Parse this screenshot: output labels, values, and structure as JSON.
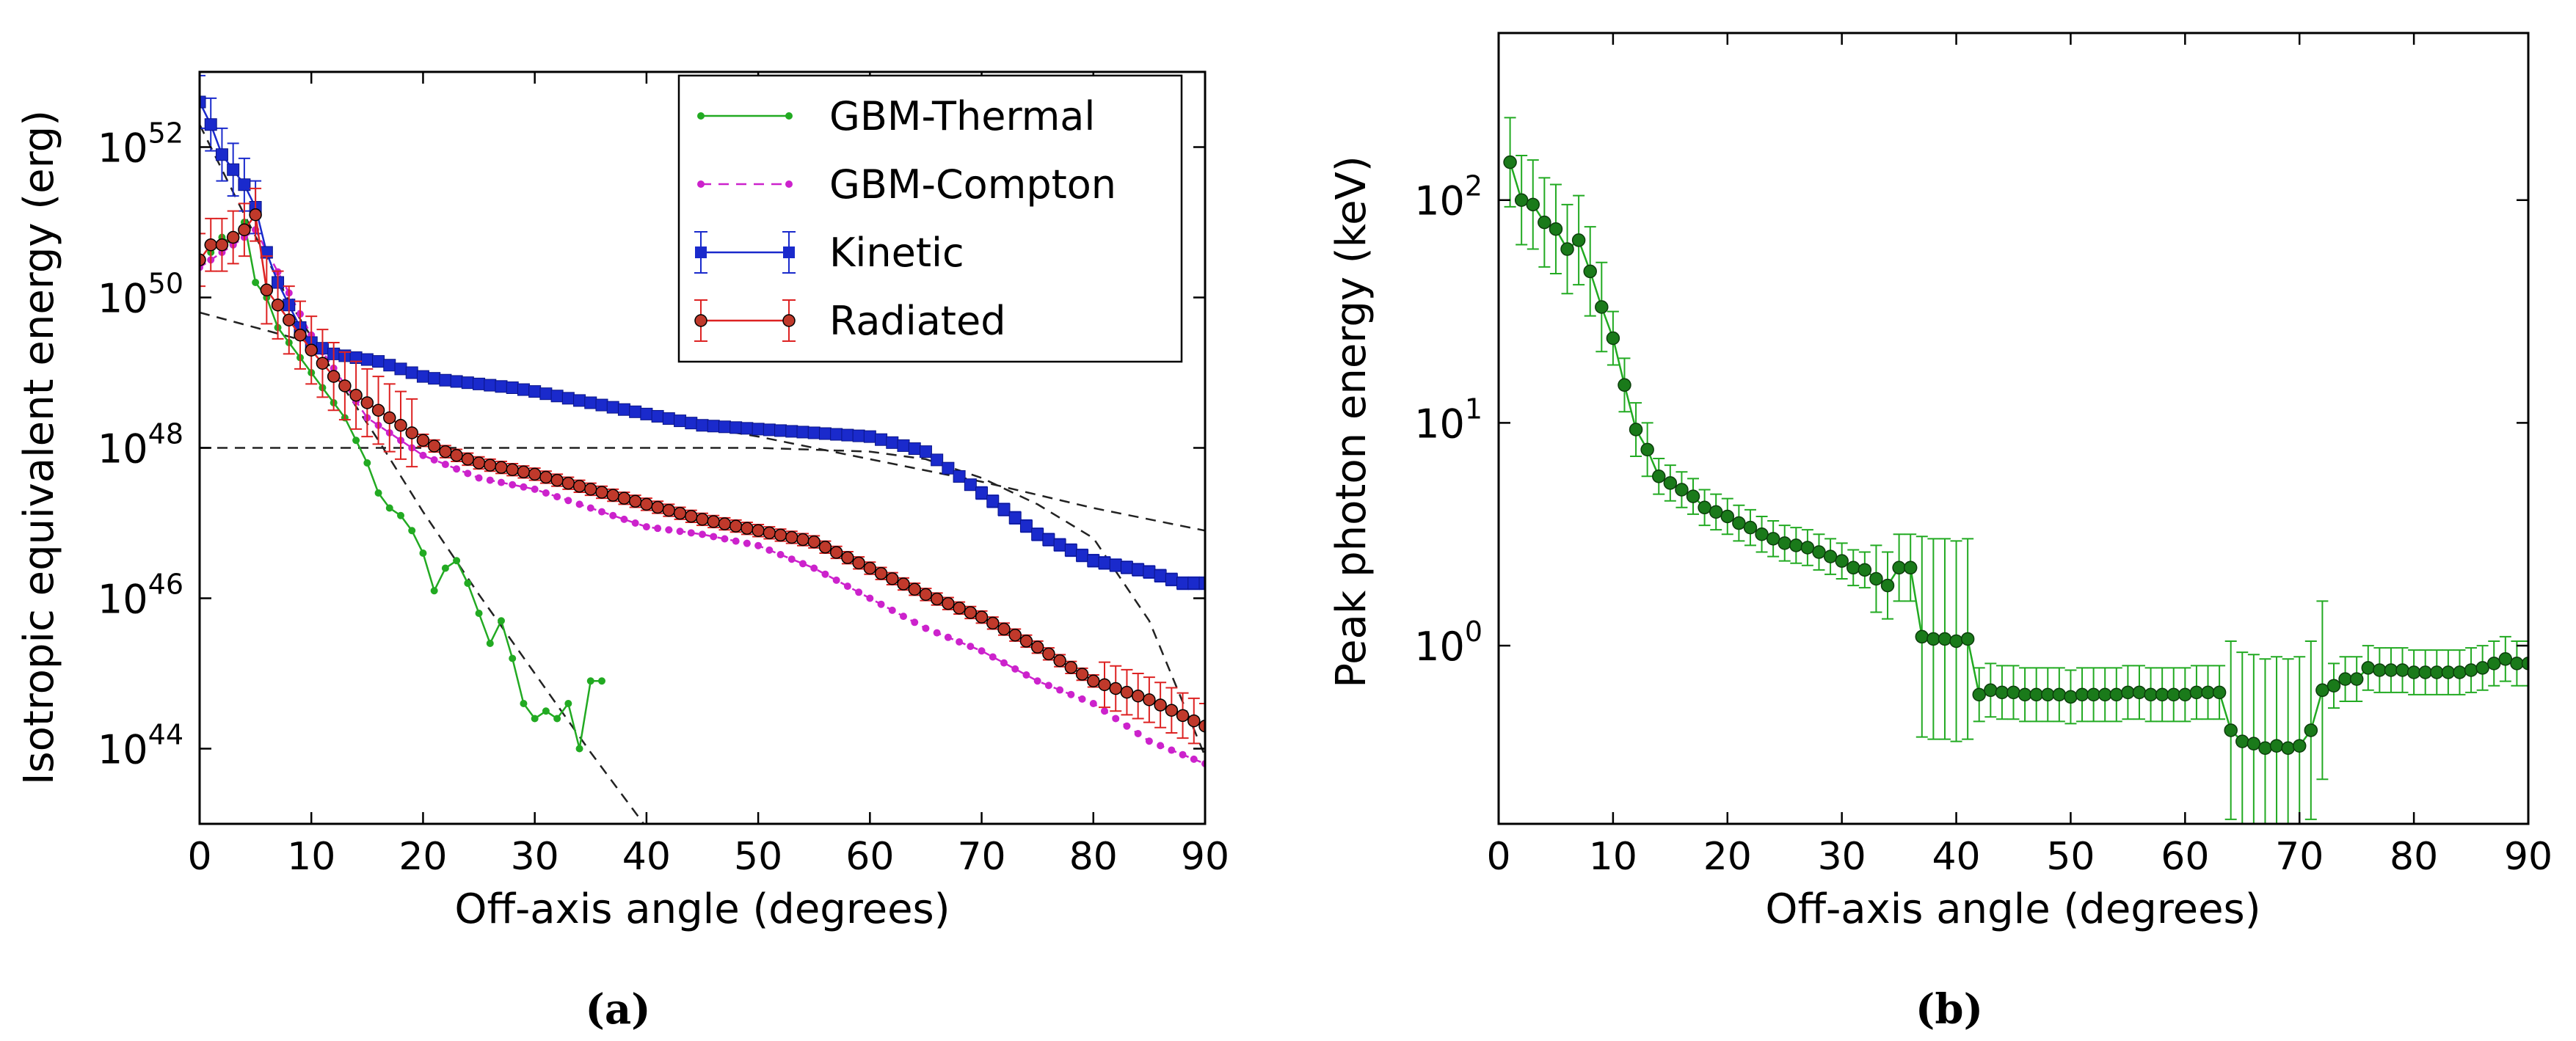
{
  "panels": [
    {
      "caption": "(a)",
      "chart_data": {
        "type": "line",
        "xlabel": "Off-axis angle (degrees)",
        "ylabel": "Isotropic equivalent energy (erg)",
        "xlim": [
          0,
          90
        ],
        "ylim_log10": [
          43,
          53
        ],
        "yscale": "log",
        "grid": false,
        "legend_placement": "top-right",
        "xticks": [
          0,
          10,
          20,
          30,
          40,
          50,
          60,
          70,
          80,
          90
        ],
        "yticks": [
          {
            "base": "10",
            "exp": "44",
            "log10": 44
          },
          {
            "base": "10",
            "exp": "46",
            "log10": 46
          },
          {
            "base": "10",
            "exp": "48",
            "log10": 48
          },
          {
            "base": "10",
            "exp": "50",
            "log10": 50
          },
          {
            "base": "10",
            "exp": "52",
            "log10": 52
          }
        ],
        "series": [
          {
            "name": "GBM-Thermal",
            "color": "#22aa22",
            "style": "dot-line",
            "x": [
              1,
              2,
              3,
              4,
              5,
              6,
              7,
              8,
              9,
              10,
              11,
              12,
              13,
              14,
              15,
              16,
              17,
              18,
              19,
              20,
              21,
              22,
              23,
              24,
              25,
              26,
              27,
              28,
              29,
              30,
              31,
              32,
              33,
              34,
              35,
              36
            ],
            "log10_y": [
              50.6,
              50.8,
              50.7,
              51.0,
              50.2,
              50.0,
              49.6,
              49.4,
              49.2,
              49.0,
              48.8,
              48.6,
              48.4,
              48.1,
              47.8,
              47.4,
              47.2,
              47.1,
              46.9,
              46.6,
              46.1,
              46.4,
              46.5,
              46.2,
              45.8,
              45.4,
              45.7,
              45.2,
              44.6,
              44.4,
              44.5,
              44.4,
              44.6,
              44.0,
              44.9,
              44.9
            ]
          },
          {
            "name": "GBM-Compton",
            "color": "#cc22cc",
            "style": "dashed-dot",
            "x": [
              0,
              5,
              10,
              15,
              20,
              25,
              30,
              35,
              40,
              45,
              50,
              55,
              60,
              65,
              70,
              75,
              80,
              85,
              90
            ],
            "log10_y": [
              50.4,
              50.9,
              49.5,
              48.4,
              47.9,
              47.6,
              47.45,
              47.2,
              46.95,
              46.85,
              46.7,
              46.4,
              46.0,
              45.6,
              45.3,
              44.9,
              44.6,
              44.1,
              43.8
            ]
          },
          {
            "name": "Kinetic",
            "color": "#1a2acc",
            "style": "square-line",
            "x": [
              0,
              1,
              2,
              3,
              4,
              5,
              6,
              7,
              8,
              9,
              10,
              12,
              14,
              16,
              18,
              20,
              22,
              25,
              28,
              30,
              35,
              40,
              45,
              50,
              55,
              60,
              65,
              70,
              75,
              80,
              85,
              88,
              90
            ],
            "log10_y": [
              52.6,
              52.3,
              51.9,
              51.7,
              51.5,
              51.2,
              50.6,
              50.2,
              49.9,
              49.6,
              49.4,
              49.25,
              49.2,
              49.15,
              49.05,
              48.95,
              48.9,
              48.85,
              48.8,
              48.75,
              48.6,
              48.45,
              48.3,
              48.25,
              48.2,
              48.15,
              47.95,
              47.4,
              46.85,
              46.5,
              46.35,
              46.2,
              46.2
            ]
          },
          {
            "name": "Radiated",
            "color": "#dd2222",
            "marker_fill": "#c0392b",
            "style": "circle-line",
            "x": [
              0,
              1,
              2,
              3,
              4,
              5,
              6,
              7,
              8,
              10,
              12,
              14,
              16,
              18,
              20,
              22,
              25,
              30,
              35,
              40,
              45,
              50,
              55,
              60,
              65,
              70,
              75,
              80,
              85,
              90
            ],
            "log10_y": [
              50.5,
              50.7,
              50.7,
              50.8,
              50.9,
              51.1,
              50.1,
              49.9,
              49.7,
              49.3,
              48.95,
              48.7,
              48.5,
              48.3,
              48.1,
              47.95,
              47.8,
              47.65,
              47.45,
              47.25,
              47.05,
              46.9,
              46.75,
              46.4,
              46.05,
              45.75,
              45.35,
              44.9,
              44.65,
              44.3
            ]
          }
        ],
        "fit_lines": [
          {
            "x": [
              0,
              4,
              8,
              12,
              16,
              20,
              25,
              30,
              35,
              40
            ],
            "log10_y": [
              52.3,
              51.1,
              49.95,
              49.0,
              48.1,
              47.15,
              46.05,
              45.0,
              43.95,
              42.95
            ]
          },
          {
            "x": [
              0,
              10,
              20,
              30,
              40,
              50,
              60,
              70,
              80,
              90
            ],
            "log10_y": [
              49.8,
              49.4,
              49.0,
              48.7,
              48.4,
              48.15,
              47.85,
              47.55,
              47.2,
              46.9
            ]
          },
          {
            "x": [
              0,
              10,
              20,
              30,
              40,
              50,
              60,
              65,
              70,
              75,
              80,
              85,
              90
            ],
            "log10_y": [
              48.0,
              48.0,
              48.0,
              48.0,
              48.0,
              48.0,
              47.95,
              47.85,
              47.6,
              47.25,
              46.8,
              45.7,
              43.9
            ]
          }
        ]
      }
    },
    {
      "caption": "(b)",
      "chart_data": {
        "type": "line",
        "xlabel": "Off-axis angle (degrees)",
        "ylabel": "Peak photon energy (keV)",
        "xlim": [
          0,
          90
        ],
        "ylim_log10": [
          -0.8,
          2.75
        ],
        "yscale": "log",
        "grid": false,
        "xticks": [
          0,
          10,
          20,
          30,
          40,
          50,
          60,
          70,
          80,
          90
        ],
        "yticks": [
          {
            "base": "10",
            "exp": "0",
            "log10": 0
          },
          {
            "base": "10",
            "exp": "1",
            "log10": 1
          },
          {
            "base": "10",
            "exp": "2",
            "log10": 2
          }
        ],
        "series": [
          {
            "color": "#22aa22",
            "marker_fill": "#1a7a1a",
            "style": "circle-line",
            "x": [
              1,
              2,
              3,
              4,
              5,
              6,
              7,
              8,
              9,
              10,
              11,
              12,
              13,
              14,
              15,
              16,
              17,
              18,
              19,
              20,
              21,
              22,
              23,
              24,
              25,
              26,
              27,
              28,
              29,
              30,
              31,
              32,
              33,
              34,
              35,
              36,
              37,
              38,
              39,
              40,
              41,
              42,
              43,
              44,
              45,
              46,
              47,
              48,
              49,
              50,
              51,
              52,
              53,
              54,
              55,
              56,
              57,
              58,
              59,
              60,
              61,
              62,
              63,
              64,
              65,
              66,
              67,
              68,
              69,
              70,
              71,
              72,
              73,
              74,
              75,
              76,
              77,
              78,
              79,
              80,
              81,
              82,
              83,
              84,
              85,
              86,
              87,
              88,
              89,
              90
            ],
            "log10_y": [
              2.17,
              2.0,
              1.98,
              1.9,
              1.87,
              1.78,
              1.82,
              1.68,
              1.52,
              1.38,
              1.17,
              0.97,
              0.88,
              0.76,
              0.73,
              0.7,
              0.67,
              0.62,
              0.6,
              0.58,
              0.55,
              0.53,
              0.5,
              0.48,
              0.46,
              0.45,
              0.44,
              0.42,
              0.4,
              0.38,
              0.35,
              0.34,
              0.3,
              0.27,
              0.35,
              0.35,
              0.04,
              0.03,
              0.03,
              0.02,
              0.03,
              -0.22,
              -0.2,
              -0.21,
              -0.21,
              -0.22,
              -0.22,
              -0.22,
              -0.22,
              -0.23,
              -0.22,
              -0.22,
              -0.22,
              -0.22,
              -0.21,
              -0.21,
              -0.22,
              -0.22,
              -0.22,
              -0.22,
              -0.21,
              -0.21,
              -0.21,
              -0.38,
              -0.43,
              -0.44,
              -0.46,
              -0.45,
              -0.46,
              -0.45,
              -0.38,
              -0.2,
              -0.18,
              -0.15,
              -0.15,
              -0.1,
              -0.11,
              -0.11,
              -0.11,
              -0.12,
              -0.12,
              -0.12,
              -0.12,
              -0.12,
              -0.11,
              -0.1,
              -0.08,
              -0.06,
              -0.08,
              -0.08
            ]
          }
        ]
      }
    }
  ]
}
